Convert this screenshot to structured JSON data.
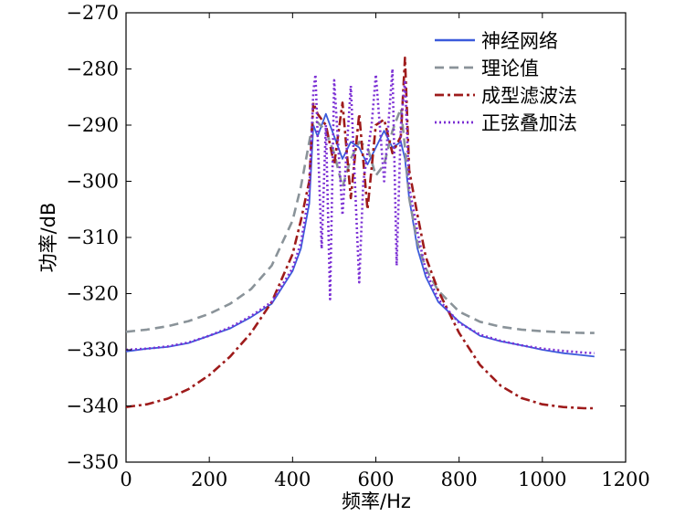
{
  "chart_data": {
    "type": "line",
    "title": "",
    "xlabel": "频率/Hz",
    "ylabel": "功率/dB",
    "xlim": [
      0,
      1200
    ],
    "ylim": [
      -350,
      -270
    ],
    "xticks": [
      "0",
      "200",
      "400",
      "600",
      "800",
      "1000",
      "1200"
    ],
    "yticks": [
      "−270",
      "−280",
      "−290",
      "−300",
      "−310",
      "−320",
      "−330",
      "−340",
      "−350"
    ],
    "grid": false,
    "legend_position": "top-right",
    "series": [
      {
        "name": "神经网络",
        "color": "#3b5bdb",
        "style": "solid",
        "x": [
          0,
          50,
          100,
          150,
          200,
          250,
          300,
          350,
          400,
          420,
          440,
          450,
          460,
          480,
          500,
          520,
          540,
          560,
          580,
          600,
          620,
          640,
          660,
          670,
          680,
          700,
          720,
          750,
          800,
          850,
          900,
          950,
          1000,
          1050,
          1100,
          1125
        ],
        "y": [
          -330.3,
          -329.8,
          -329.5,
          -328.8,
          -327.5,
          -326.2,
          -324.2,
          -321.8,
          -316,
          -312,
          -304,
          -290,
          -292,
          -288,
          -292,
          -296,
          -293,
          -294,
          -297,
          -294,
          -291,
          -294,
          -293,
          -296,
          -303,
          -312,
          -317,
          -321.5,
          -325,
          -327.5,
          -328.5,
          -329.2,
          -330,
          -330.6,
          -331,
          -331.2
        ]
      },
      {
        "name": "理论值",
        "color": "#8a9399",
        "style": "dashed",
        "x": [
          0,
          50,
          100,
          150,
          200,
          250,
          300,
          350,
          400,
          420,
          440,
          450,
          460,
          480,
          500,
          520,
          540,
          560,
          580,
          600,
          620,
          640,
          660,
          670,
          680,
          700,
          720,
          750,
          800,
          850,
          900,
          950,
          1000,
          1050,
          1100,
          1125
        ],
        "y": [
          -326.8,
          -326.4,
          -325.8,
          -324.9,
          -323.6,
          -321.8,
          -319.2,
          -315,
          -307,
          -301,
          -293,
          -289,
          -289.5,
          -291,
          -295,
          -301,
          -296,
          -293,
          -294,
          -299,
          -297,
          -291,
          -287,
          -294,
          -303,
          -311,
          -315.5,
          -319.5,
          -323.2,
          -325,
          -325.9,
          -326.4,
          -326.7,
          -326.9,
          -327,
          -327
        ]
      },
      {
        "name": "成型滤波法",
        "color": "#9e1b1b",
        "style": "dashdot",
        "x": [
          0,
          50,
          100,
          150,
          200,
          250,
          300,
          350,
          400,
          420,
          440,
          450,
          460,
          480,
          500,
          520,
          540,
          560,
          580,
          600,
          620,
          640,
          660,
          670,
          680,
          700,
          720,
          750,
          800,
          850,
          900,
          950,
          1000,
          1050,
          1100,
          1125
        ],
        "y": [
          -340.2,
          -339.7,
          -338.7,
          -337,
          -334.5,
          -331.2,
          -327,
          -321.5,
          -313,
          -307,
          -300,
          -286,
          -288,
          -290,
          -297,
          -286,
          -303,
          -288,
          -305,
          -290,
          -289,
          -295,
          -292,
          -278,
          -298,
          -306,
          -313.5,
          -319.5,
          -327,
          -332.7,
          -336.4,
          -338.6,
          -339.7,
          -340.2,
          -340.4,
          -340.4
        ]
      },
      {
        "name": "正弦叠加法",
        "color": "#7b2fd4",
        "style": "dotted",
        "x": [
          0,
          50,
          100,
          150,
          200,
          250,
          300,
          350,
          400,
          420,
          440,
          450,
          455,
          470,
          480,
          490,
          500,
          520,
          540,
          560,
          570,
          590,
          600,
          620,
          640,
          650,
          660,
          670,
          680,
          700,
          720,
          750,
          800,
          850,
          900,
          950,
          1000,
          1050,
          1100,
          1125
        ],
        "y": [
          -330,
          -329.8,
          -329.4,
          -328.7,
          -327.5,
          -326,
          -324,
          -321.5,
          -315.5,
          -311,
          -302,
          -284,
          -281,
          -312,
          -290,
          -321,
          -282,
          -306,
          -283,
          -318,
          -300,
          -290,
          -281,
          -300,
          -280,
          -315,
          -290,
          -282,
          -301,
          -309,
          -316,
          -321,
          -325.2,
          -327.3,
          -328.4,
          -329.2,
          -329.8,
          -330.2,
          -330.5,
          -330.6
        ]
      }
    ]
  }
}
